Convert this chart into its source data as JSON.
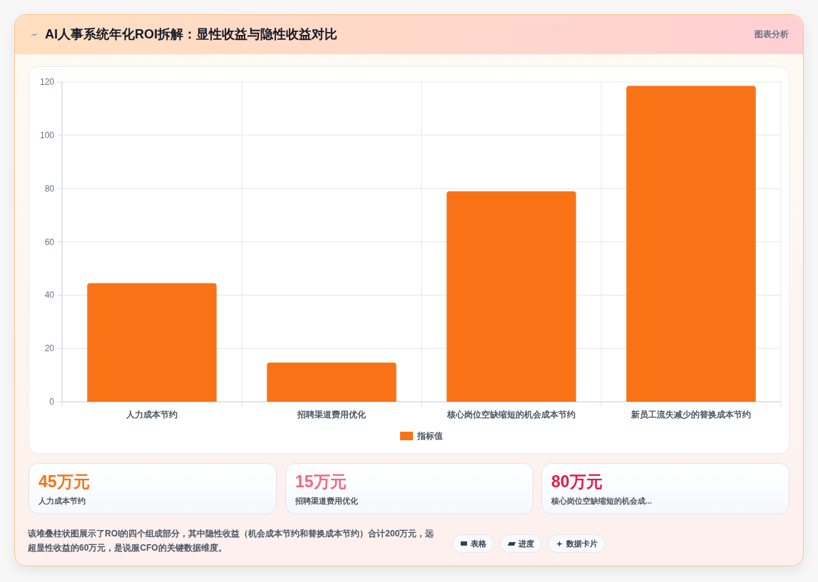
{
  "chart_data": {
    "type": "bar",
    "title": "AI人事系统年化ROI拆解：显性收益与隐性收益对比",
    "categories": [
      "人力成本节约",
      "招聘渠道费用优化",
      "核心岗位空缺缩短的机会成本节约",
      "新员工流失减少的替换成本节约"
    ],
    "series": [
      {
        "name": "指标值",
        "color": "#f97316",
        "values": [
          44.5,
          14.7,
          79,
          118.5
        ]
      }
    ],
    "ylim": [
      0,
      120
    ],
    "yticks": [
      0,
      20,
      40,
      60,
      80,
      100,
      120
    ],
    "grid": true,
    "legend": "bottom",
    "annotations": [
      "图表分析",
      "45万元",
      "人力成本节约",
      "15万元",
      "招聘渠道费用优化",
      "80万元",
      "核心岗位空缺缩短的机会成...",
      "该堆叠柱状图展示了ROI的四个组成部分，其中隐性收益（机会成本节约和替换成本节约）合计200万元，远超显性收益的60万元，是说服CFO的关键数据维度。",
      "表格",
      "进度",
      "数据卡片"
    ]
  }
}
